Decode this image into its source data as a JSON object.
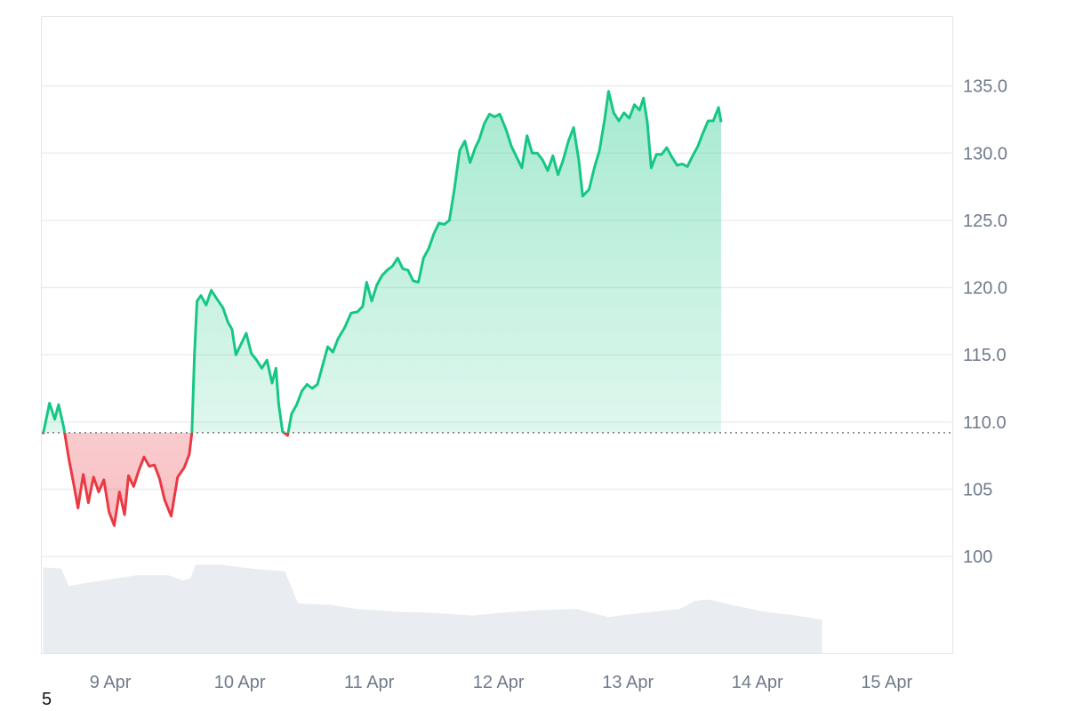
{
  "colors": {
    "up": "#16c784",
    "down": "#ea3943",
    "up_fill": "#16c784",
    "down_fill": "#ea3943",
    "grid": "#eeeeee",
    "volume": "#e9edf2",
    "baseline": "#777777",
    "tick_text": "#707a8a"
  },
  "corner_label": "5",
  "chart_data": {
    "type": "area",
    "baseline": 109.2,
    "ylim": [
      92.8,
      140.2
    ],
    "y_ticks": [
      {
        "value": 135,
        "label": "135.0"
      },
      {
        "value": 130,
        "label": "130.0"
      },
      {
        "value": 125,
        "label": "125.0"
      },
      {
        "value": 120,
        "label": "120.0"
      },
      {
        "value": 115,
        "label": "115.0"
      },
      {
        "value": 110,
        "label": "110.0"
      },
      {
        "value": 105,
        "label": "105"
      },
      {
        "value": 100,
        "label": "100"
      }
    ],
    "x_range": [
      8.47,
      15.5
    ],
    "x_ticks": [
      {
        "value": 9,
        "label": "9 Apr"
      },
      {
        "value": 10,
        "label": "10 Apr"
      },
      {
        "value": 11,
        "label": "11 Apr"
      },
      {
        "value": 12,
        "label": "12 Apr"
      },
      {
        "value": 13,
        "label": "13 Apr"
      },
      {
        "value": 14,
        "label": "14 Apr"
      },
      {
        "value": 15,
        "label": "15 Apr"
      }
    ],
    "price": [
      [
        8.48,
        109.1
      ],
      [
        8.53,
        111.4
      ],
      [
        8.57,
        110.2
      ],
      [
        8.6,
        111.3
      ],
      [
        8.64,
        109.6
      ],
      [
        8.68,
        107.2
      ],
      [
        8.72,
        105.2
      ],
      [
        8.75,
        103.6
      ],
      [
        8.79,
        106.1
      ],
      [
        8.83,
        104.0
      ],
      [
        8.87,
        105.9
      ],
      [
        8.91,
        104.8
      ],
      [
        8.95,
        105.7
      ],
      [
        8.99,
        103.3
      ],
      [
        9.03,
        102.3
      ],
      [
        9.07,
        104.8
      ],
      [
        9.11,
        103.1
      ],
      [
        9.14,
        106.0
      ],
      [
        9.18,
        105.2
      ],
      [
        9.22,
        106.4
      ],
      [
        9.26,
        107.4
      ],
      [
        9.3,
        106.7
      ],
      [
        9.34,
        106.8
      ],
      [
        9.38,
        105.8
      ],
      [
        9.42,
        104.2
      ],
      [
        9.47,
        103.0
      ],
      [
        9.52,
        105.9
      ],
      [
        9.57,
        106.6
      ],
      [
        9.61,
        107.6
      ],
      [
        9.63,
        109.2
      ],
      [
        9.65,
        115.0
      ],
      [
        9.67,
        119.0
      ],
      [
        9.7,
        119.4
      ],
      [
        9.74,
        118.7
      ],
      [
        9.78,
        119.8
      ],
      [
        9.82,
        119.2
      ],
      [
        9.87,
        118.5
      ],
      [
        9.91,
        117.4
      ],
      [
        9.94,
        116.9
      ],
      [
        9.97,
        115.0
      ],
      [
        10.01,
        115.8
      ],
      [
        10.05,
        116.6
      ],
      [
        10.09,
        115.1
      ],
      [
        10.13,
        114.6
      ],
      [
        10.17,
        114.0
      ],
      [
        10.21,
        114.6
      ],
      [
        10.25,
        112.9
      ],
      [
        10.28,
        114.0
      ],
      [
        10.3,
        111.4
      ],
      [
        10.33,
        109.3
      ],
      [
        10.37,
        109.0
      ],
      [
        10.4,
        110.6
      ],
      [
        10.44,
        111.3
      ],
      [
        10.48,
        112.3
      ],
      [
        10.52,
        112.8
      ],
      [
        10.56,
        112.5
      ],
      [
        10.6,
        112.8
      ],
      [
        10.64,
        114.2
      ],
      [
        10.68,
        115.6
      ],
      [
        10.72,
        115.2
      ],
      [
        10.76,
        116.2
      ],
      [
        10.81,
        117.0
      ],
      [
        10.86,
        118.1
      ],
      [
        10.91,
        118.2
      ],
      [
        10.95,
        118.6
      ],
      [
        10.98,
        120.4
      ],
      [
        11.02,
        119.0
      ],
      [
        11.06,
        120.2
      ],
      [
        11.1,
        120.9
      ],
      [
        11.14,
        121.3
      ],
      [
        11.18,
        121.6
      ],
      [
        11.22,
        122.2
      ],
      [
        11.26,
        121.4
      ],
      [
        11.3,
        121.3
      ],
      [
        11.34,
        120.5
      ],
      [
        11.38,
        120.4
      ],
      [
        11.42,
        122.2
      ],
      [
        11.46,
        122.9
      ],
      [
        11.5,
        124.0
      ],
      [
        11.54,
        124.8
      ],
      [
        11.58,
        124.7
      ],
      [
        11.62,
        125.0
      ],
      [
        11.66,
        127.4
      ],
      [
        11.7,
        130.2
      ],
      [
        11.74,
        130.9
      ],
      [
        11.78,
        129.3
      ],
      [
        11.82,
        130.4
      ],
      [
        11.85,
        131.0
      ],
      [
        11.89,
        132.2
      ],
      [
        11.93,
        132.9
      ],
      [
        11.97,
        132.7
      ],
      [
        12.01,
        132.9
      ],
      [
        12.06,
        131.7
      ],
      [
        12.1,
        130.5
      ],
      [
        12.14,
        129.7
      ],
      [
        12.18,
        128.9
      ],
      [
        12.22,
        131.3
      ],
      [
        12.26,
        130.0
      ],
      [
        12.3,
        130.0
      ],
      [
        12.34,
        129.5
      ],
      [
        12.38,
        128.7
      ],
      [
        12.42,
        129.8
      ],
      [
        12.46,
        128.4
      ],
      [
        12.5,
        129.5
      ],
      [
        12.54,
        130.9
      ],
      [
        12.58,
        131.9
      ],
      [
        12.62,
        129.5
      ],
      [
        12.65,
        126.8
      ],
      [
        12.7,
        127.3
      ],
      [
        12.74,
        128.9
      ],
      [
        12.78,
        130.2
      ],
      [
        12.82,
        132.5
      ],
      [
        12.85,
        134.6
      ],
      [
        12.89,
        133.0
      ],
      [
        12.93,
        132.4
      ],
      [
        12.97,
        133.0
      ],
      [
        13.01,
        132.6
      ],
      [
        13.05,
        133.6
      ],
      [
        13.09,
        133.2
      ],
      [
        13.12,
        134.1
      ],
      [
        13.15,
        132.3
      ],
      [
        13.18,
        128.9
      ],
      [
        13.22,
        129.9
      ],
      [
        13.26,
        129.9
      ],
      [
        13.3,
        130.4
      ],
      [
        13.34,
        129.7
      ],
      [
        13.38,
        129.1
      ],
      [
        13.42,
        129.2
      ],
      [
        13.46,
        129.0
      ],
      [
        13.5,
        129.8
      ],
      [
        13.54,
        130.5
      ],
      [
        13.58,
        131.5
      ],
      [
        13.62,
        132.4
      ],
      [
        13.66,
        132.4
      ],
      [
        13.7,
        133.4
      ],
      [
        13.72,
        132.3
      ]
    ],
    "volume": [
      [
        8.48,
        99.2
      ],
      [
        8.62,
        99.1
      ],
      [
        8.68,
        97.8
      ],
      [
        8.8,
        98.0
      ],
      [
        9.0,
        98.3
      ],
      [
        9.2,
        98.6
      ],
      [
        9.45,
        98.6
      ],
      [
        9.56,
        98.2
      ],
      [
        9.62,
        98.4
      ],
      [
        9.66,
        99.4
      ],
      [
        9.85,
        99.4
      ],
      [
        10.0,
        99.2
      ],
      [
        10.2,
        99.0
      ],
      [
        10.35,
        98.9
      ],
      [
        10.45,
        96.5
      ],
      [
        10.7,
        96.4
      ],
      [
        10.9,
        96.1
      ],
      [
        11.2,
        95.9
      ],
      [
        11.5,
        95.8
      ],
      [
        11.8,
        95.6
      ],
      [
        12.0,
        95.8
      ],
      [
        12.3,
        96.0
      ],
      [
        12.6,
        96.1
      ],
      [
        12.85,
        95.5
      ],
      [
        13.1,
        95.8
      ],
      [
        13.4,
        96.1
      ],
      [
        13.52,
        96.7
      ],
      [
        13.62,
        96.8
      ],
      [
        13.8,
        96.4
      ],
      [
        14.05,
        95.9
      ],
      [
        14.3,
        95.6
      ],
      [
        14.45,
        95.4
      ],
      [
        14.5,
        95.3
      ]
    ]
  }
}
